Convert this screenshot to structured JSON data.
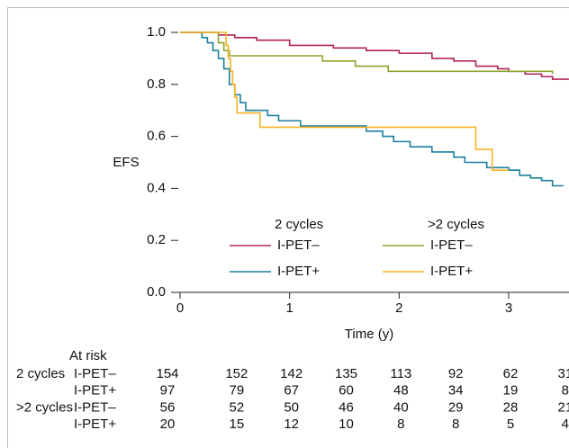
{
  "chart_data": {
    "type": "step",
    "ylabel": "EFS",
    "xlabel": "Time (y)",
    "xlim": [
      0,
      3.55
    ],
    "ylim": [
      0,
      1
    ],
    "xticks": [
      0,
      1,
      2,
      3
    ],
    "yticks": [
      {
        "value": 0,
        "label": "0.0"
      },
      0.2,
      0.4,
      0.6,
      0.8,
      {
        "value": 1,
        "label": "1.0"
      }
    ],
    "legend_groups": [
      "2 cycles",
      ">2 cycles"
    ],
    "series": [
      {
        "name": "I-PET–",
        "color": "#b0235a",
        "x": [
          0,
          0.35,
          0.5,
          0.7,
          1.0,
          1.4,
          1.7,
          2.0,
          2.3,
          2.5,
          2.7,
          2.9,
          3.0,
          3.15,
          3.3,
          3.4,
          3.55
        ],
        "values": [
          1.0,
          0.99,
          0.98,
          0.97,
          0.95,
          0.94,
          0.93,
          0.92,
          0.9,
          0.89,
          0.87,
          0.86,
          0.85,
          0.84,
          0.83,
          0.82,
          0.82
        ]
      },
      {
        "name": "I-PET+",
        "color": "#1b7f9e",
        "x": [
          0,
          0.2,
          0.25,
          0.3,
          0.35,
          0.4,
          0.45,
          0.5,
          0.55,
          0.6,
          0.8,
          0.9,
          1.1,
          1.7,
          1.85,
          1.95,
          2.1,
          2.3,
          2.5,
          2.6,
          2.8,
          3.0,
          3.1,
          3.2,
          3.3,
          3.4,
          3.5
        ],
        "values": [
          1.0,
          0.98,
          0.96,
          0.93,
          0.9,
          0.86,
          0.8,
          0.76,
          0.73,
          0.7,
          0.68,
          0.66,
          0.64,
          0.62,
          0.6,
          0.58,
          0.56,
          0.54,
          0.52,
          0.5,
          0.48,
          0.47,
          0.45,
          0.44,
          0.43,
          0.41,
          0.41
        ]
      },
      {
        "name": "I-PET–",
        "color": "#8aa62a",
        "x": [
          0,
          0.35,
          0.4,
          0.45,
          1.3,
          1.6,
          1.9,
          3.0,
          3.4
        ],
        "values": [
          1.0,
          0.96,
          0.93,
          0.91,
          0.89,
          0.87,
          0.85,
          0.85,
          0.84
        ]
      },
      {
        "name": "I-PET+",
        "color": "#f5b324",
        "x": [
          0,
          0.4,
          0.42,
          0.44,
          0.46,
          0.48,
          0.5,
          0.52,
          0.73,
          2.7,
          2.85,
          3.0
        ],
        "values": [
          1.0,
          1.0,
          0.95,
          0.9,
          0.85,
          0.8,
          0.75,
          0.69,
          0.635,
          0.55,
          0.47,
          0.47
        ]
      }
    ],
    "at_risk": {
      "title": "At risk",
      "groups": [
        {
          "name": "2 cycles",
          "rows": [
            {
              "label": "I-PET–",
              "values": [
                154,
                152,
                142,
                135,
                113,
                92,
                62,
                31
              ]
            },
            {
              "label": "I-PET+",
              "values": [
                97,
                79,
                67,
                60,
                48,
                34,
                19,
                8
              ]
            }
          ]
        },
        {
          "name": ">2 cycles",
          "rows": [
            {
              "label": "I-PET–",
              "values": [
                56,
                52,
                50,
                46,
                40,
                29,
                28,
                21
              ]
            },
            {
              "label": "I-PET+",
              "values": [
                20,
                15,
                12,
                10,
                8,
                8,
                5,
                4
              ]
            }
          ]
        }
      ]
    }
  }
}
